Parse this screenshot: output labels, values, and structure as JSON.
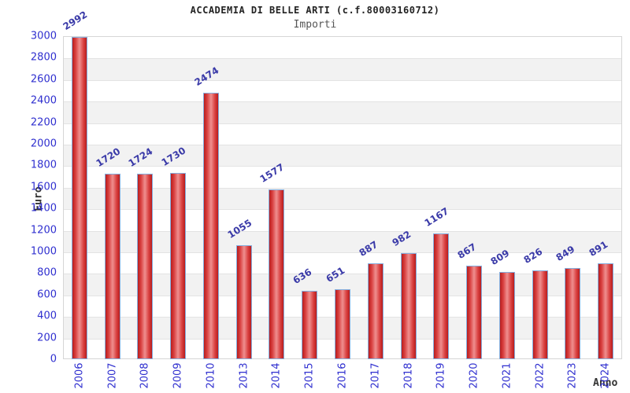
{
  "chart": {
    "title": "ACCADEMIA DI BELLE ARTI (c.f.80003160712)",
    "subtitle": "Importi",
    "ylabel": "Euro",
    "xlabel": "Anno"
  },
  "chart_data": {
    "type": "bar",
    "title": "ACCADEMIA DI BELLE ARTI (c.f.80003160712)",
    "subtitle": "Importi",
    "xlabel": "Anno",
    "ylabel": "Euro",
    "categories": [
      "2006",
      "2007",
      "2008",
      "2009",
      "2010",
      "2013",
      "2014",
      "2015",
      "2016",
      "2017",
      "2018",
      "2019",
      "2020",
      "2021",
      "2022",
      "2023",
      "2024"
    ],
    "values": [
      2992,
      1720,
      1724,
      1730,
      2474,
      1055,
      1577,
      636,
      651,
      887,
      982,
      1167,
      867,
      809,
      826,
      849,
      891
    ],
    "ylim": [
      0,
      3000
    ],
    "ytick_step": 200,
    "grid": "horizontal gridlines with alternating gray bands",
    "legend": "none",
    "colors": {
      "bar_fill_edge": "#b81d1d",
      "bar_fill_center": "#ef8f8f",
      "bar_border": "#85aede",
      "tick_label": "#2f2fcf",
      "value_label": "#3a3aa8",
      "band_gray": "#f2f2f2",
      "gridline": "#e3e3e3",
      "title_color": "#222222",
      "subtitle_color": "#555555"
    }
  }
}
